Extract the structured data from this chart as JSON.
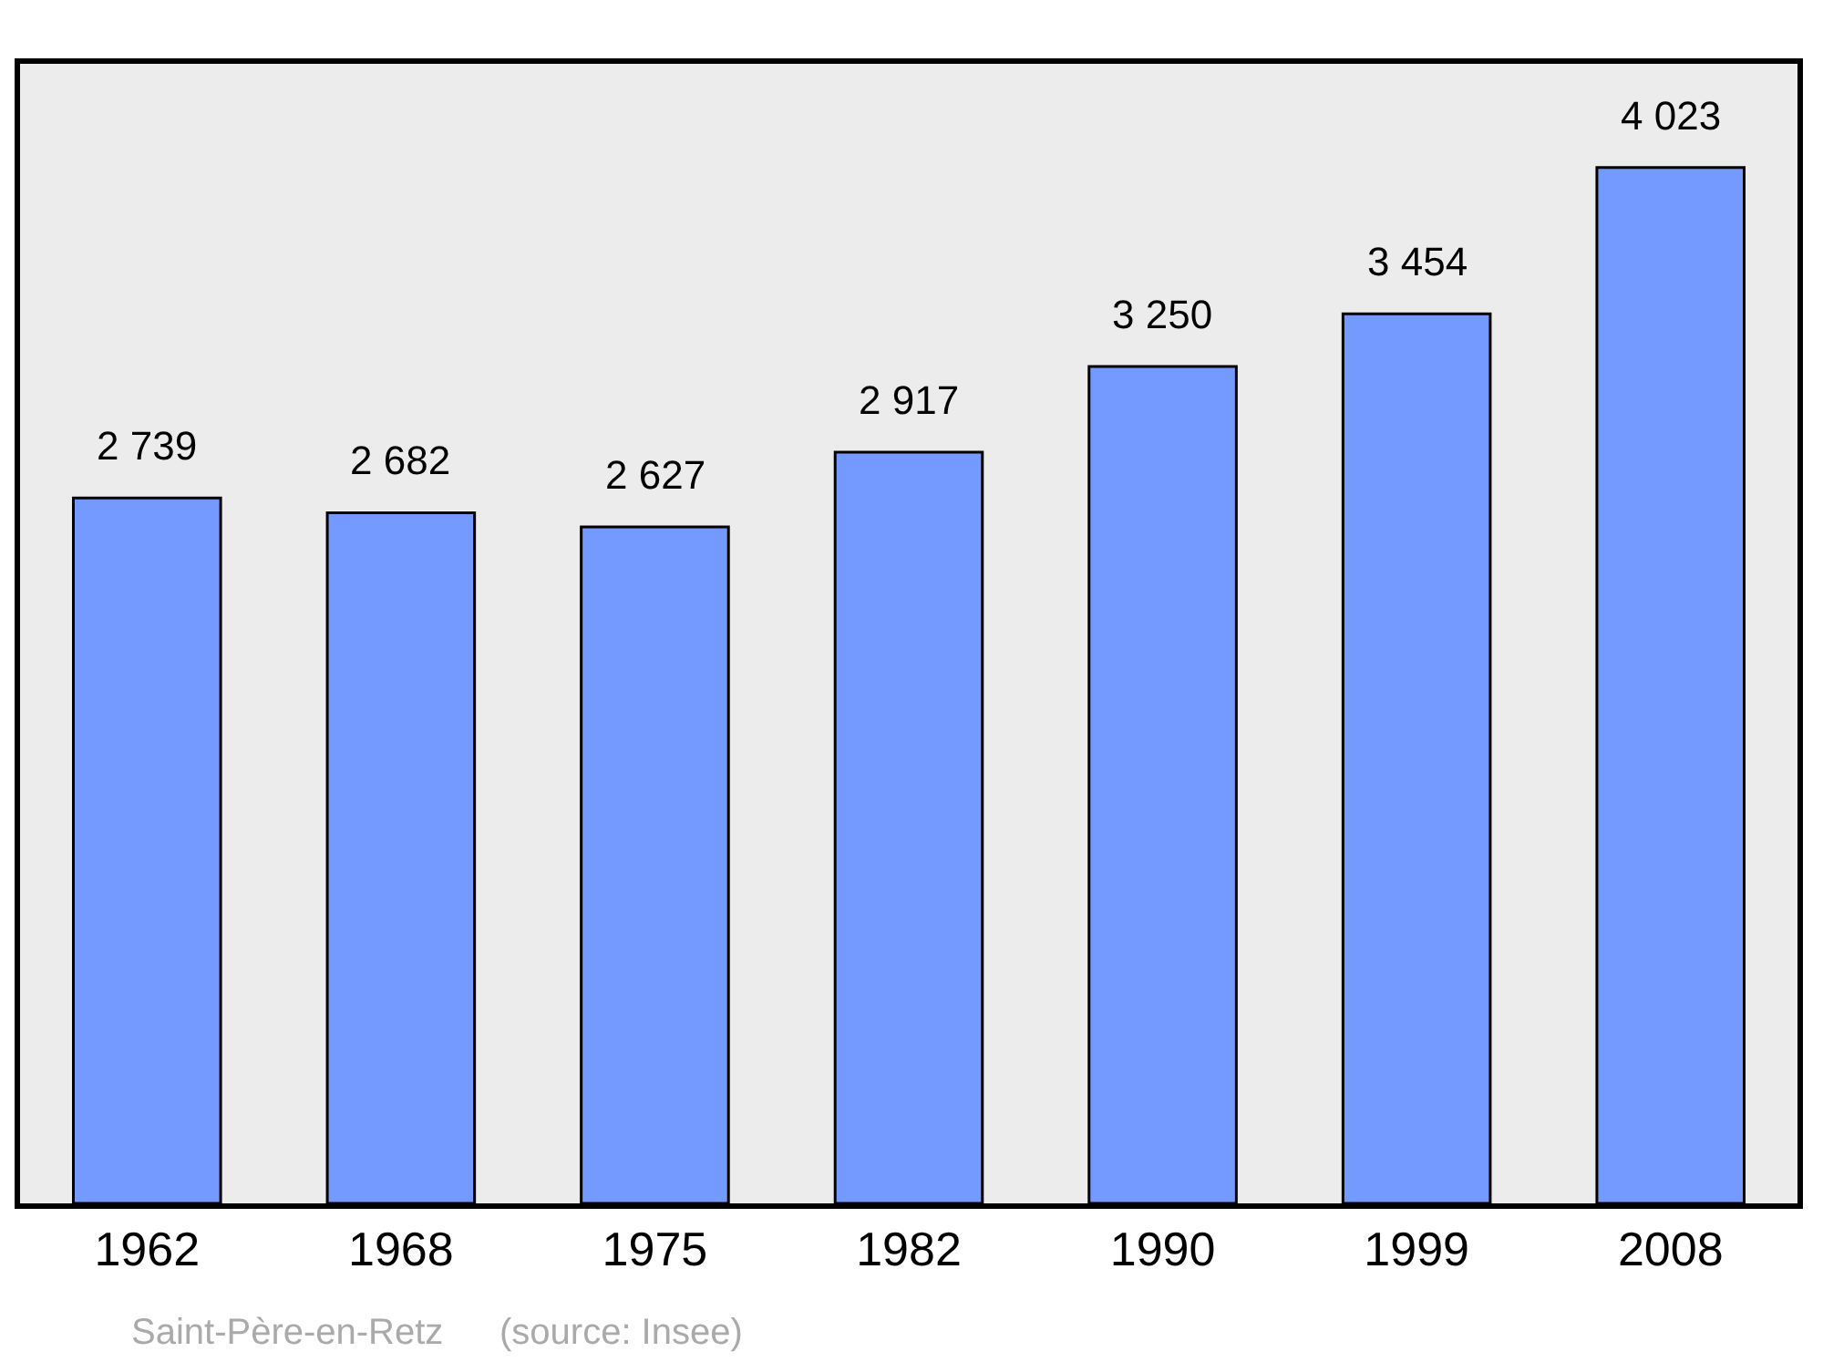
{
  "chart_data": {
    "type": "bar",
    "categories": [
      "1962",
      "1968",
      "1975",
      "1982",
      "1990",
      "1999",
      "2008"
    ],
    "values": [
      2739,
      2682,
      2627,
      2917,
      3250,
      3454,
      4023
    ],
    "value_labels": [
      "2 739",
      "2 682",
      "2 627",
      "2 917",
      "3 250",
      "3 454",
      "4 023"
    ],
    "color": "#7499ff",
    "tick_labels": "x",
    "annotations": [
      "Saint-Père-en-Retz",
      "(source: Insee)"
    ]
  }
}
